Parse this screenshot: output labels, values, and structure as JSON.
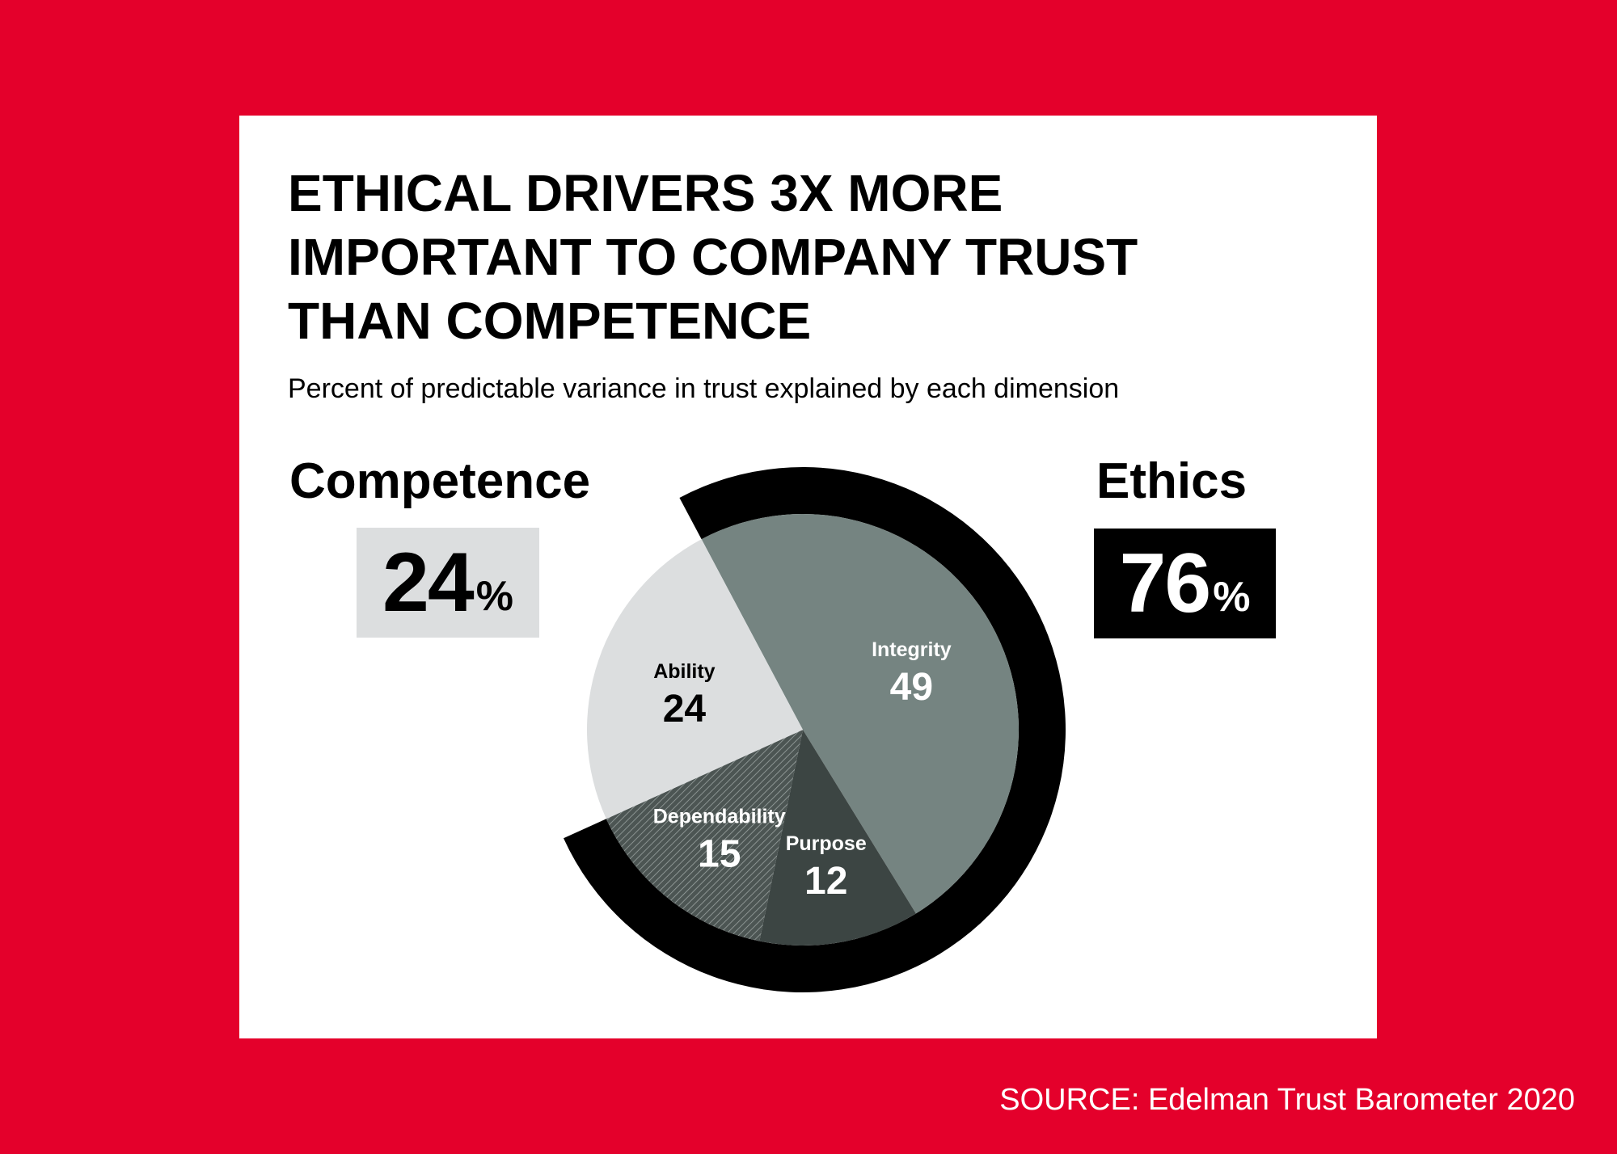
{
  "title_lines": [
    "ETHICAL DRIVERS 3X MORE",
    "IMPORTANT TO COMPANY TRUST",
    "THAN COMPETENCE"
  ],
  "subtitle": "Percent of predictable variance in trust explained by each dimension",
  "groups": {
    "competence": {
      "label": "Competence",
      "value": "24",
      "unit": "%",
      "color": "#dcdedf"
    },
    "ethics": {
      "label": "Ethics",
      "value": "76",
      "unit": "%",
      "color": "#000000"
    }
  },
  "source": "SOURCE: Edelman Trust Barometer 2020",
  "colors": {
    "background": "#e4002b",
    "card": "#ffffff"
  },
  "chart_data": {
    "type": "pie",
    "title": "ETHICAL DRIVERS 3X MORE IMPORTANT TO COMPANY TRUST THAN COMPETENCE",
    "slices": [
      {
        "label": "Integrity",
        "value": 49,
        "group": "Ethics",
        "color": "#758481",
        "text_color": "#ffffff"
      },
      {
        "label": "Purpose",
        "value": 12,
        "group": "Ethics",
        "color": "#3c4543",
        "text_color": "#ffffff"
      },
      {
        "label": "Dependability",
        "value": 15,
        "group": "Ethics",
        "color": "#5d6765",
        "text_color": "#ffffff",
        "pattern": "hatched"
      },
      {
        "label": "Ability",
        "value": 24,
        "group": "Competence",
        "color": "#dcdedf",
        "text_color": "#000000"
      }
    ],
    "outer_ring": {
      "label": "Ethics",
      "value": 76,
      "color": "#000000"
    }
  }
}
